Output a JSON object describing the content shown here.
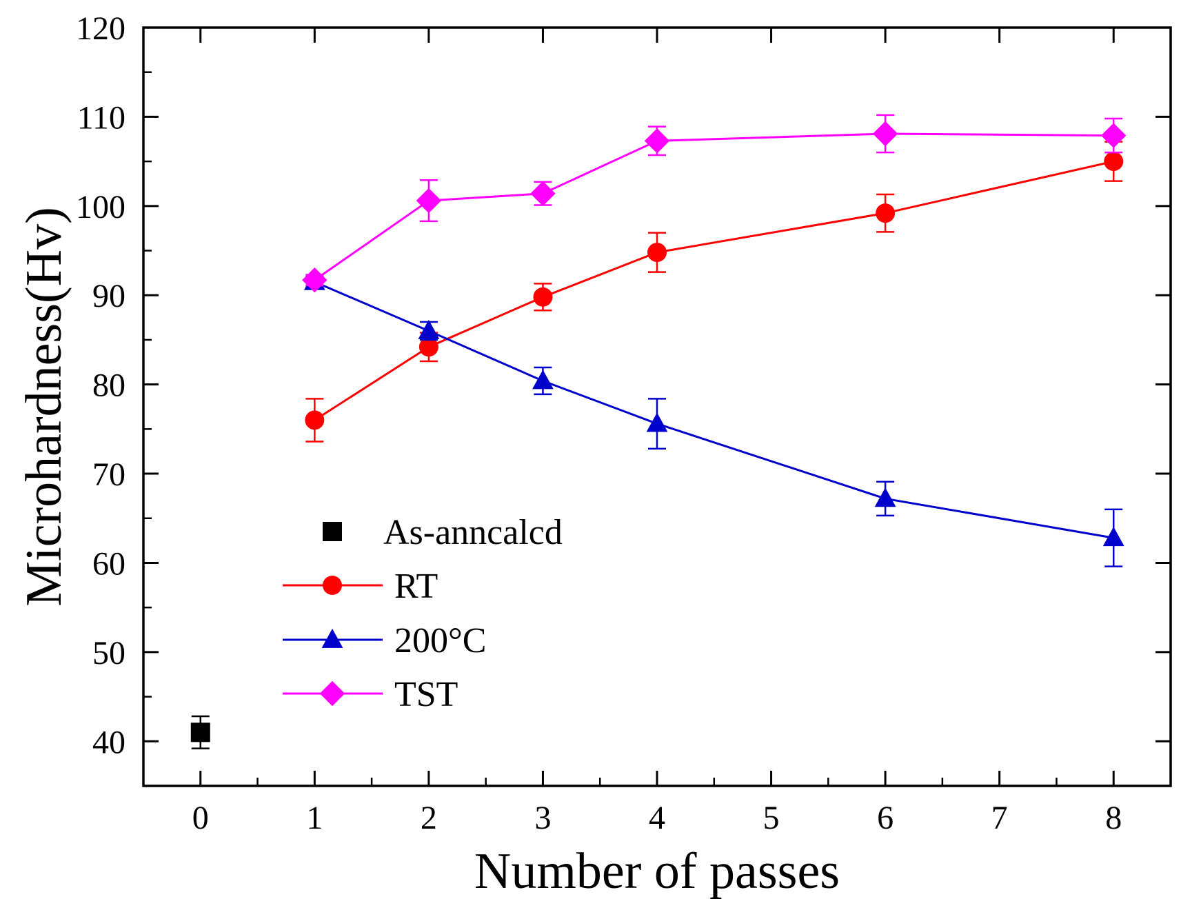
{
  "chart_data": {
    "type": "line",
    "xlabel": "Number of passes",
    "ylabel": "Microhardness(Hv)",
    "xlim": [
      -0.5,
      8.5
    ],
    "ylim": [
      35,
      120
    ],
    "grid": false,
    "legend_position": "center-left",
    "x_ticks": [
      0,
      1,
      2,
      3,
      4,
      5,
      6,
      7,
      8
    ],
    "x_tick_labels": [
      "0",
      "1",
      "2",
      "3",
      "4",
      "5",
      "6",
      "7",
      "8"
    ],
    "y_ticks": [
      40,
      50,
      60,
      70,
      80,
      90,
      100,
      110,
      120
    ],
    "y_tick_labels": [
      "40",
      "50",
      "60",
      "70",
      "80",
      "90",
      "100",
      "110",
      "120"
    ],
    "series": [
      {
        "name": "As-anncalcd",
        "color": "#000000",
        "marker": "square",
        "line": false,
        "x": [
          0
        ],
        "y": [
          41
        ],
        "err": [
          1.8
        ]
      },
      {
        "name": "RT",
        "color": "#ff0000",
        "marker": "circle",
        "line": true,
        "x": [
          1,
          2,
          3,
          4,
          6,
          8
        ],
        "y": [
          76,
          84.2,
          89.8,
          94.8,
          99.2,
          105
        ],
        "err": [
          2.4,
          1.6,
          1.5,
          2.2,
          2.1,
          2.2
        ]
      },
      {
        "name": "200°C",
        "color": "#0000cc",
        "marker": "triangle",
        "line": true,
        "x": [
          1,
          2,
          3,
          4,
          6,
          8
        ],
        "y": [
          91.5,
          86,
          80.4,
          75.6,
          67.2,
          62.8
        ],
        "err": [
          0.6,
          1.0,
          1.5,
          2.8,
          1.9,
          3.2
        ]
      },
      {
        "name": "TST",
        "color": "#ff00ff",
        "marker": "diamond",
        "line": true,
        "x": [
          1,
          2,
          3,
          4,
          6,
          8
        ],
        "y": [
          91.7,
          100.6,
          101.4,
          107.3,
          108.1,
          107.9
        ],
        "err": [
          0.6,
          2.3,
          1.3,
          1.6,
          2.1,
          1.9
        ]
      }
    ]
  }
}
